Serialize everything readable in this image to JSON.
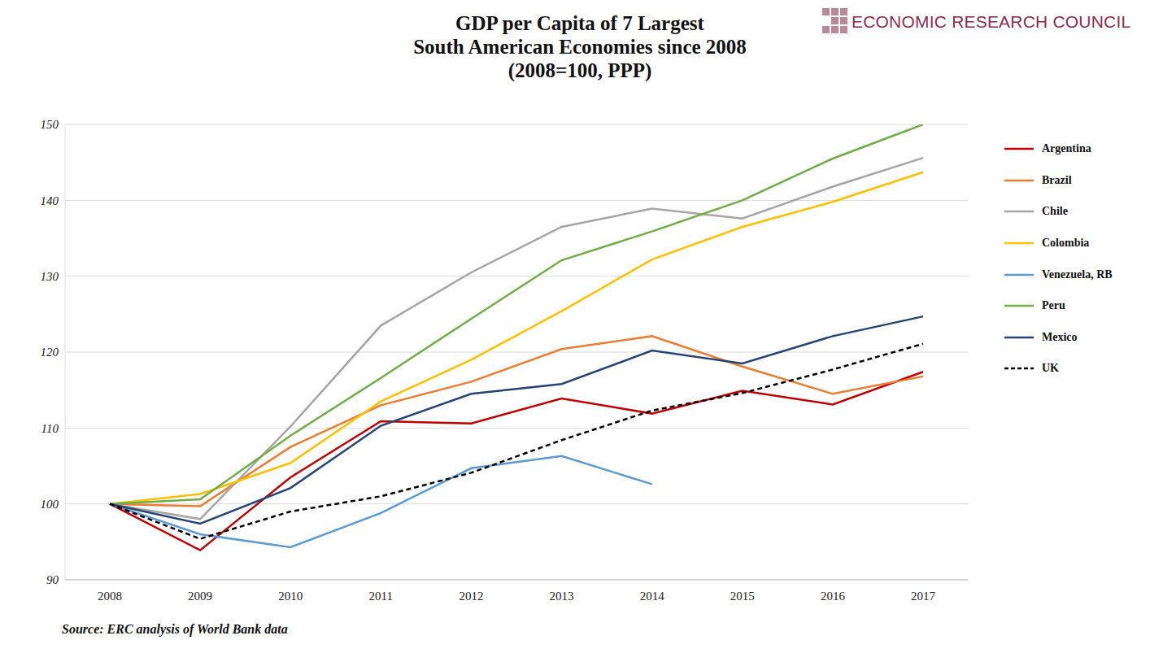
{
  "chart_data": {
    "type": "line",
    "title": [
      "GDP per Capita of 7 Largest",
      "South American Economies since 2008",
      "(2008=100, PPP)"
    ],
    "logo": "ECONOMIC RESEARCH COUNCIL",
    "source": "Source: ERC analysis of World Bank data",
    "categories": [
      "2008",
      "2009",
      "2010",
      "2011",
      "2012",
      "2013",
      "2014",
      "2015",
      "2016",
      "2017"
    ],
    "series": [
      {
        "name": "Argentina",
        "color": "#c00000",
        "values": [
          100,
          93.9,
          103.5,
          110.9,
          110.6,
          113.9,
          111.9,
          114.9,
          113.1,
          117.4
        ]
      },
      {
        "name": "Brazil",
        "color": "#ed7d31",
        "values": [
          100,
          99.7,
          107.5,
          113.0,
          116.1,
          120.4,
          122.1,
          118.1,
          114.5,
          116.8
        ]
      },
      {
        "name": "Chile",
        "color": "#a5a5a5",
        "values": [
          100,
          98.0,
          110.2,
          123.5,
          130.5,
          136.5,
          138.9,
          137.6,
          141.8,
          145.6
        ]
      },
      {
        "name": "Colombia",
        "color": "#ffc000",
        "values": [
          100,
          101.3,
          105.4,
          113.5,
          119.0,
          125.4,
          132.2,
          136.5,
          139.8,
          143.7
        ]
      },
      {
        "name": "Venezuela, RB",
        "color": "#5b9bd5",
        "values": [
          100,
          96.0,
          94.3,
          98.8,
          104.7,
          106.3,
          102.6,
          null,
          null,
          null
        ]
      },
      {
        "name": "Peru",
        "color": "#70ad47",
        "values": [
          100,
          100.6,
          109.0,
          116.6,
          124.4,
          132.1,
          135.9,
          140.0,
          145.5,
          150.0
        ]
      },
      {
        "name": "Mexico",
        "color": "#264478",
        "values": [
          100,
          97.4,
          102.1,
          110.3,
          114.5,
          115.8,
          120.2,
          118.5,
          122.1,
          124.7
        ]
      },
      {
        "name": "UK",
        "color": "#000000",
        "line_style": "dashed",
        "values": [
          100,
          95.4,
          99.0,
          101.0,
          104.1,
          108.4,
          112.3,
          114.6,
          117.7,
          121.1
        ]
      }
    ],
    "ylim": [
      90,
      150
    ],
    "yticks": [
      90,
      100,
      110,
      120,
      130,
      140,
      150
    ],
    "grid": true,
    "legend": "right"
  }
}
